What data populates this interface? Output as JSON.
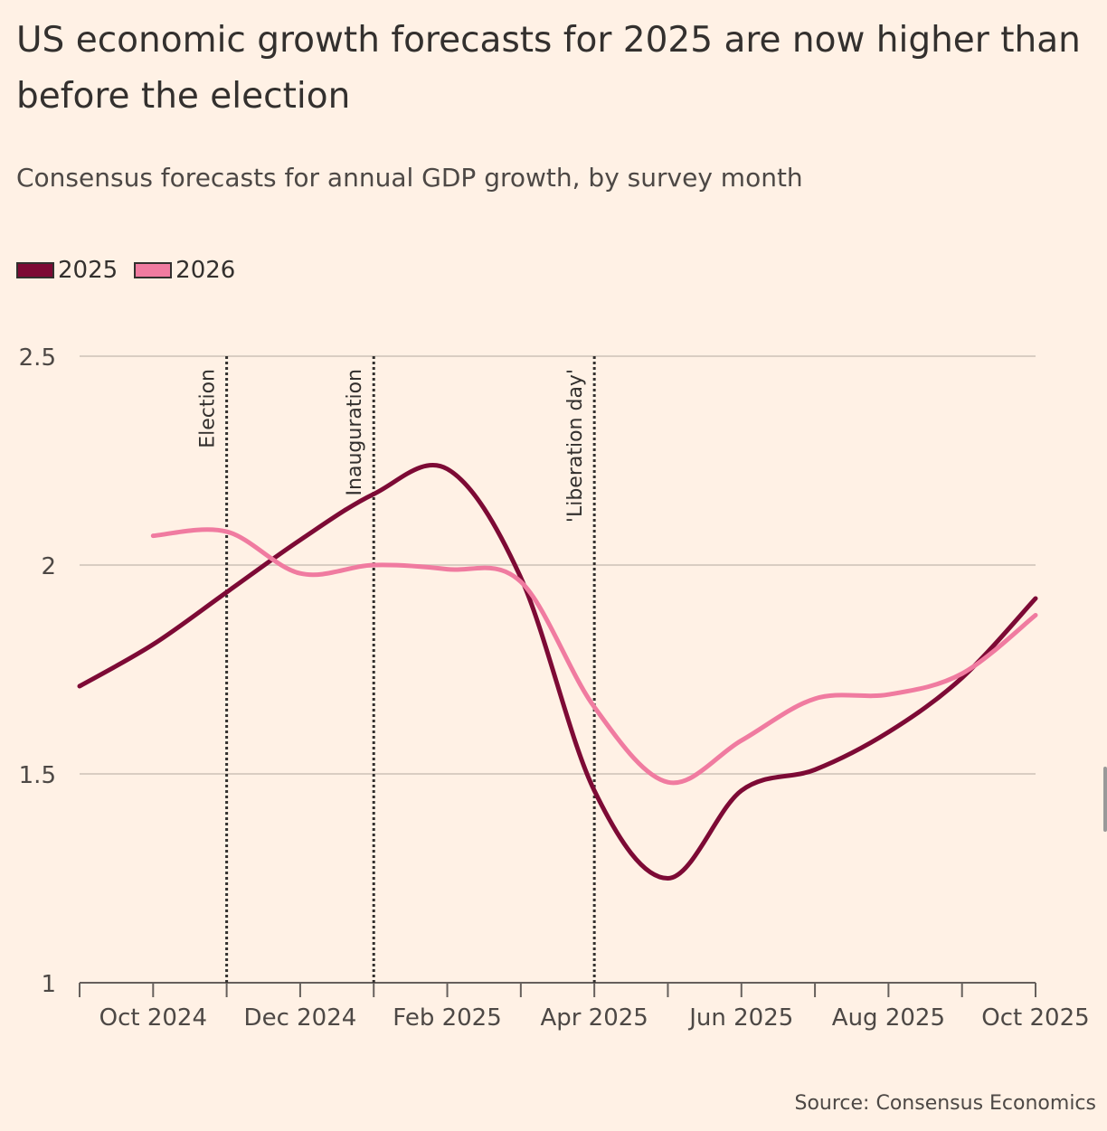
{
  "title": "US economic growth forecasts for 2025 are now higher than before the election",
  "subtitle": "Consensus forecasts for annual GDP growth, by survey month",
  "source": "Source: Consensus Economics",
  "chart_data": {
    "type": "line",
    "title": "US economic growth forecasts for 2025 are now higher than before the election",
    "subtitle": "Consensus forecasts for annual GDP growth, by survey month",
    "xlabel": "",
    "ylabel": "",
    "ylim": [
      1,
      2.5
    ],
    "yticks": [
      1,
      1.5,
      2,
      2.5
    ],
    "ytick_labels": [
      "1",
      "1.5",
      "2",
      "2.5"
    ],
    "x": [
      "Sep 2024",
      "Oct 2024",
      "Nov 2024",
      "Dec 2024",
      "Jan 2025",
      "Feb 2025",
      "Mar 2025",
      "Apr 2025",
      "May 2025",
      "Jun 2025",
      "Jul 2025",
      "Aug 2025",
      "Sep 2025",
      "Oct 2025"
    ],
    "xtick_labels": {
      "1": "Oct 2024",
      "3": "Dec 2024",
      "5": "Feb 2025",
      "7": "Apr 2025",
      "9": "Jun 2025",
      "11": "Aug 2025",
      "13": "Oct 2025"
    },
    "grid": true,
    "legend_position": "top-left",
    "series": [
      {
        "name": "2025",
        "color": "#7d0a35",
        "values": [
          1.71,
          1.81,
          1.935,
          2.06,
          2.17,
          2.23,
          1.97,
          1.46,
          1.25,
          1.46,
          1.51,
          1.6,
          1.73,
          1.92
        ]
      },
      {
        "name": "2026",
        "color": "#f07ba0",
        "values": [
          null,
          2.07,
          2.08,
          1.98,
          2.0,
          1.99,
          1.96,
          1.66,
          1.48,
          1.58,
          1.68,
          1.69,
          1.74,
          1.88
        ]
      }
    ],
    "annotations": [
      {
        "label": "Election",
        "x_index": 2
      },
      {
        "label": "Inauguration",
        "x_index": 4
      },
      {
        "label": "'Liberation day'",
        "x_index": 7
      }
    ]
  }
}
